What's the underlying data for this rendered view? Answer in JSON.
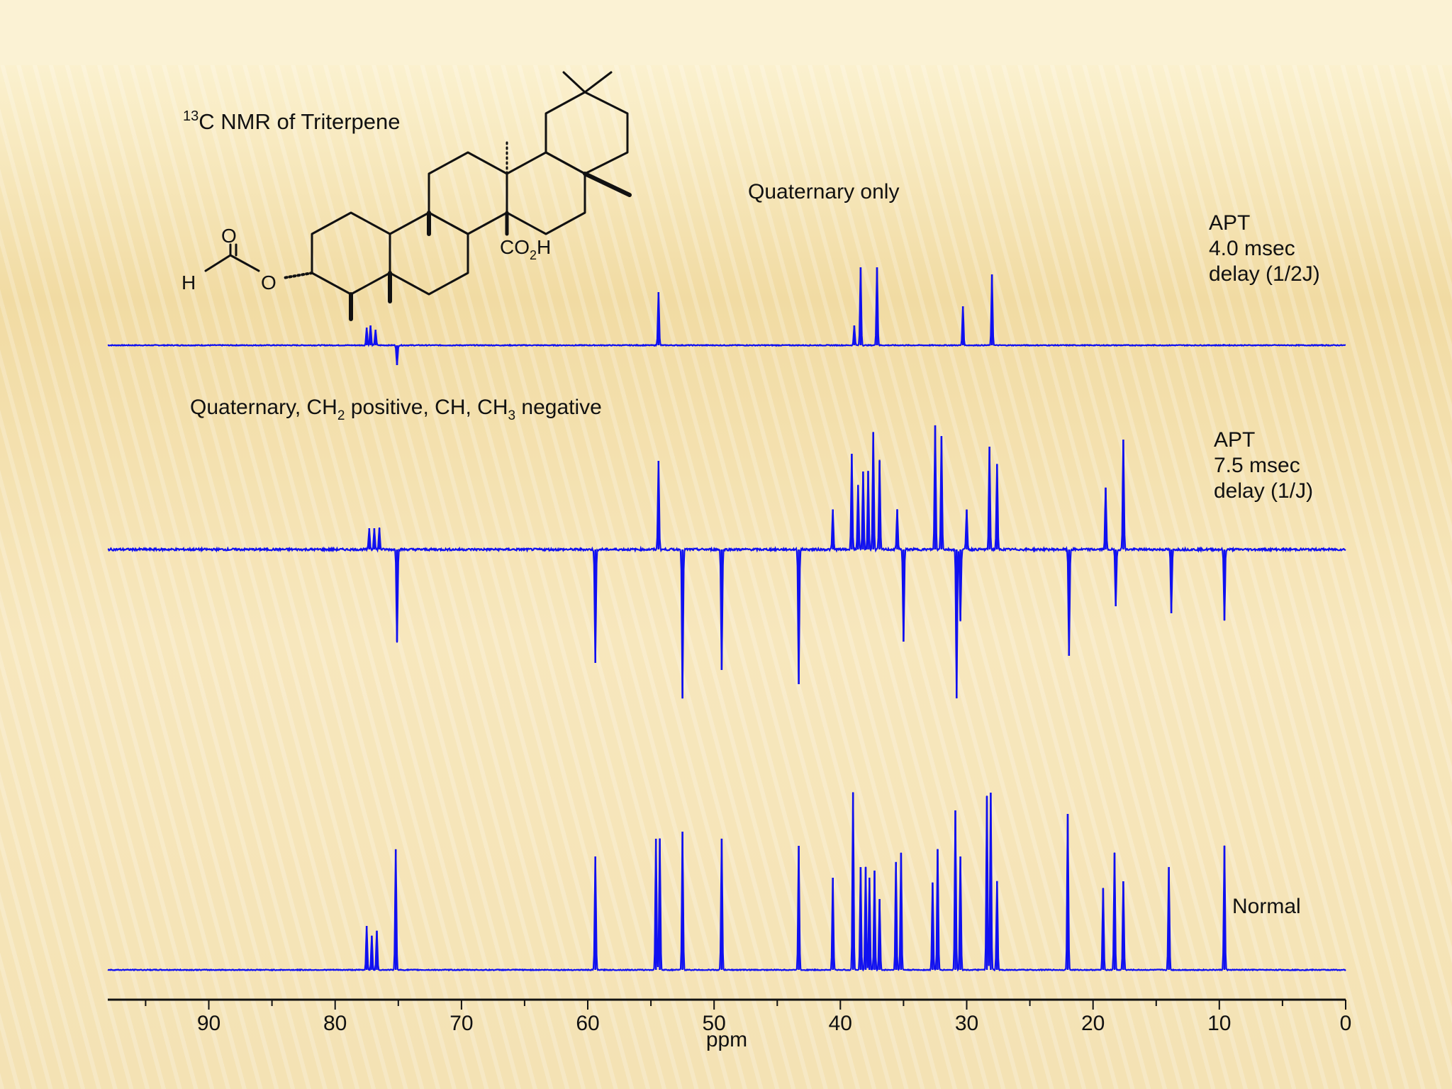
{
  "chart_data": {
    "type": "line",
    "title": "13C NMR of Triterpene",
    "title_superscript": "13",
    "title_rest": "C NMR of Triterpene",
    "xlabel": "ppm",
    "xlim": [
      98,
      0
    ],
    "x_reversed": true,
    "xticks": [
      90,
      80,
      70,
      60,
      50,
      40,
      30,
      20,
      10,
      0
    ],
    "tick_labels": [
      "90",
      "80",
      "70",
      "60",
      "50",
      "40",
      "30",
      "20",
      "10",
      "0"
    ],
    "line_color": "#1010f0",
    "grid": false,
    "series": [
      {
        "name": "APT 4.0 msec delay (1/2J)",
        "label_lines": [
          "APT",
          "4.0 msec",
          "delay (1/2J)"
        ],
        "annotation": "Quaternary only",
        "peaks": [
          [
            77.5,
            0.25
          ],
          [
            77.2,
            0.28
          ],
          [
            76.8,
            0.22
          ],
          [
            75.1,
            -0.28
          ],
          [
            54.4,
            0.75
          ],
          [
            38.9,
            0.28
          ],
          [
            38.4,
            1.1
          ],
          [
            37.1,
            1.1
          ],
          [
            30.3,
            0.55
          ],
          [
            28.0,
            1.0
          ]
        ]
      },
      {
        "name": "APT 7.5 msec delay (1/J)",
        "label_lines": [
          "APT",
          "7.5 msec",
          "delay (1/J)"
        ],
        "annotation_parts": [
          "Quaternary, CH",
          "2",
          " positive, CH, CH",
          "3",
          " negative"
        ],
        "peaks": [
          [
            77.3,
            0.3
          ],
          [
            76.9,
            0.3
          ],
          [
            76.5,
            0.3
          ],
          [
            75.1,
            -1.3
          ],
          [
            59.4,
            -1.6
          ],
          [
            54.4,
            1.25
          ],
          [
            52.5,
            -2.1
          ],
          [
            49.4,
            -1.7
          ],
          [
            43.3,
            -1.9
          ],
          [
            40.6,
            0.56
          ],
          [
            39.1,
            1.35
          ],
          [
            38.6,
            0.9
          ],
          [
            38.2,
            1.1
          ],
          [
            37.8,
            1.1
          ],
          [
            37.4,
            1.65
          ],
          [
            36.9,
            1.25
          ],
          [
            35.5,
            0.56
          ],
          [
            35.0,
            -1.3
          ],
          [
            32.5,
            1.75
          ],
          [
            32.0,
            1.6
          ],
          [
            30.8,
            -2.1
          ],
          [
            30.5,
            -1.0
          ],
          [
            30.0,
            0.56
          ],
          [
            28.2,
            1.45
          ],
          [
            27.6,
            1.2
          ],
          [
            21.9,
            -1.5
          ],
          [
            19.0,
            0.87
          ],
          [
            18.2,
            -0.8
          ],
          [
            17.6,
            1.55
          ],
          [
            13.8,
            -0.9
          ],
          [
            9.6,
            -1.0
          ]
        ]
      },
      {
        "name": "Normal",
        "label_lines": [
          "Normal"
        ],
        "peaks": [
          [
            77.5,
            0.62
          ],
          [
            77.1,
            0.48
          ],
          [
            76.7,
            0.55
          ],
          [
            75.2,
            1.7
          ],
          [
            59.4,
            1.6
          ],
          [
            54.6,
            1.85
          ],
          [
            54.3,
            1.85
          ],
          [
            52.5,
            1.95
          ],
          [
            49.4,
            1.85
          ],
          [
            43.3,
            1.75
          ],
          [
            40.6,
            1.3
          ],
          [
            39.0,
            2.5
          ],
          [
            38.4,
            1.45
          ],
          [
            38.0,
            1.45
          ],
          [
            37.7,
            1.3
          ],
          [
            37.3,
            1.4
          ],
          [
            36.9,
            1.0
          ],
          [
            35.6,
            1.52
          ],
          [
            35.2,
            1.65
          ],
          [
            32.7,
            1.23
          ],
          [
            32.3,
            1.7
          ],
          [
            30.9,
            2.25
          ],
          [
            30.5,
            1.6
          ],
          [
            28.4,
            2.45
          ],
          [
            28.1,
            2.5
          ],
          [
            27.6,
            1.25
          ],
          [
            22.0,
            2.2
          ],
          [
            19.2,
            1.15
          ],
          [
            18.3,
            1.65
          ],
          [
            17.6,
            1.25
          ],
          [
            14.0,
            1.45
          ],
          [
            9.6,
            1.75
          ]
        ]
      }
    ]
  },
  "structure": {
    "carbonyl_oxygen": "O",
    "ester_oxygen": "O",
    "formyl_hydrogen": "H",
    "acid_group_parts": [
      "CO",
      "2",
      "H"
    ]
  }
}
